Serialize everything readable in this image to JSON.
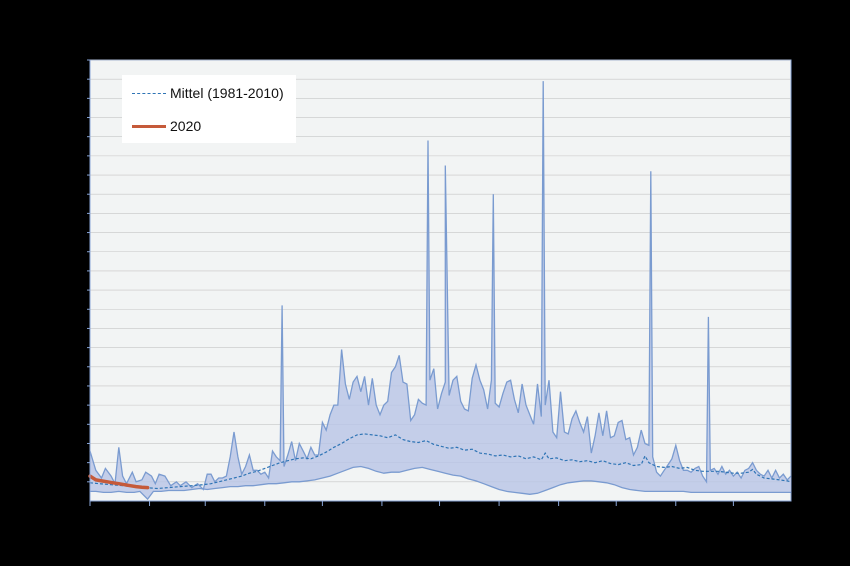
{
  "colors": {
    "background": "#000000",
    "plot_bg": "#f2f4f4",
    "band_fill": "#b8c4e6",
    "band_stroke": "#7a9bd0",
    "mean_line": "#2e74b5",
    "line_2020": "#c55a3a",
    "grid": "#c6c6c6"
  },
  "chart_data": {
    "type": "area",
    "title": "",
    "xlabel": "",
    "ylabel": "",
    "xlim": [
      1,
      366
    ],
    "ylim": [
      0,
      23
    ],
    "grid": true,
    "legend_placement": "top-left",
    "x_ticks": [
      1,
      32,
      61,
      92,
      122,
      153,
      183,
      214,
      245,
      275,
      306,
      336
    ],
    "y_ticks": [
      1,
      2,
      3,
      4,
      5,
      6,
      7,
      8,
      9,
      10,
      11,
      12,
      13,
      14,
      15,
      16,
      17,
      18,
      19,
      20,
      21,
      22,
      23
    ],
    "band_upper": [
      [
        1,
        2.6
      ],
      [
        4,
        1.6
      ],
      [
        7,
        1.2
      ],
      [
        9,
        1.7
      ],
      [
        12,
        1.3
      ],
      [
        14,
        0.9
      ],
      [
        16,
        2.8
      ],
      [
        18,
        1.3
      ],
      [
        20,
        0.9
      ],
      [
        23,
        1.5
      ],
      [
        25,
        1.0
      ],
      [
        28,
        1.1
      ],
      [
        30,
        1.5
      ],
      [
        33,
        1.3
      ],
      [
        35,
        0.9
      ],
      [
        37,
        1.4
      ],
      [
        40,
        1.3
      ],
      [
        43,
        0.8
      ],
      [
        46,
        1.0
      ],
      [
        48,
        0.8
      ],
      [
        51,
        1.0
      ],
      [
        54,
        0.7
      ],
      [
        57,
        0.9
      ],
      [
        60,
        0.6
      ],
      [
        62,
        1.4
      ],
      [
        64,
        1.4
      ],
      [
        66,
        1.0
      ],
      [
        68,
        1.2
      ],
      [
        70,
        1.2
      ],
      [
        72,
        1.3
      ],
      [
        74,
        2.3
      ],
      [
        76,
        3.6
      ],
      [
        78,
        2.3
      ],
      [
        80,
        1.4
      ],
      [
        82,
        1.8
      ],
      [
        84,
        2.4
      ],
      [
        86,
        1.6
      ],
      [
        88,
        1.6
      ],
      [
        90,
        1.4
      ],
      [
        92,
        1.5
      ],
      [
        94,
        1.2
      ],
      [
        96,
        2.6
      ],
      [
        98,
        2.3
      ],
      [
        100,
        2.1
      ],
      [
        102,
        1.8
      ],
      [
        104,
        2.4
      ],
      [
        106,
        3.1
      ],
      [
        108,
        2.1
      ],
      [
        110,
        3.0
      ],
      [
        112,
        2.6
      ],
      [
        114,
        2.2
      ],
      [
        116,
        2.8
      ],
      [
        118,
        2.4
      ],
      [
        120,
        2.4
      ],
      [
        122,
        4.1
      ],
      [
        124,
        3.7
      ],
      [
        126,
        4.5
      ],
      [
        128,
        5.0
      ],
      [
        130,
        5.0
      ],
      [
        132,
        7.9
      ],
      [
        134,
        6.1
      ],
      [
        136,
        5.3
      ],
      [
        138,
        6.2
      ],
      [
        140,
        6.5
      ],
      [
        142,
        5.7
      ],
      [
        144,
        6.5
      ],
      [
        146,
        5.0
      ],
      [
        148,
        6.4
      ],
      [
        150,
        5.0
      ],
      [
        152,
        4.5
      ],
      [
        154,
        5.0
      ],
      [
        156,
        5.2
      ],
      [
        158,
        6.7
      ],
      [
        160,
        7.0
      ],
      [
        162,
        7.6
      ],
      [
        164,
        6.2
      ],
      [
        166,
        6.1
      ],
      [
        168,
        4.2
      ],
      [
        170,
        4.5
      ],
      [
        172,
        5.3
      ],
      [
        174,
        5.1
      ],
      [
        176,
        5.0
      ],
      [
        178,
        6.3
      ],
      [
        180,
        6.9
      ],
      [
        182,
        4.8
      ],
      [
        184,
        5.6
      ],
      [
        186,
        6.2
      ],
      [
        188,
        5.5
      ],
      [
        190,
        6.3
      ],
      [
        192,
        6.5
      ],
      [
        194,
        5.2
      ],
      [
        196,
        4.8
      ],
      [
        198,
        4.7
      ],
      [
        200,
        6.4
      ],
      [
        202,
        7.1
      ],
      [
        204,
        6.3
      ],
      [
        206,
        5.8
      ],
      [
        208,
        4.8
      ],
      [
        210,
        6.3
      ],
      [
        212,
        5.1
      ],
      [
        214,
        4.9
      ],
      [
        216,
        5.6
      ],
      [
        218,
        6.2
      ],
      [
        220,
        6.3
      ],
      [
        222,
        5.3
      ],
      [
        224,
        4.6
      ],
      [
        226,
        6.1
      ],
      [
        228,
        5.0
      ],
      [
        230,
        4.5
      ],
      [
        232,
        4.0
      ],
      [
        234,
        6.1
      ],
      [
        236,
        4.4
      ],
      [
        238,
        5.0
      ],
      [
        240,
        6.3
      ],
      [
        242,
        3.6
      ],
      [
        244,
        3.3
      ],
      [
        246,
        5.7
      ],
      [
        248,
        3.6
      ],
      [
        250,
        3.5
      ],
      [
        252,
        4.3
      ],
      [
        254,
        4.7
      ],
      [
        256,
        4.1
      ],
      [
        258,
        3.6
      ],
      [
        260,
        4.4
      ],
      [
        262,
        2.5
      ],
      [
        264,
        3.4
      ],
      [
        266,
        4.6
      ],
      [
        268,
        3.4
      ],
      [
        270,
        4.7
      ],
      [
        272,
        3.3
      ],
      [
        274,
        3.4
      ],
      [
        276,
        4.1
      ],
      [
        278,
        4.2
      ],
      [
        280,
        3.2
      ],
      [
        282,
        3.3
      ],
      [
        284,
        2.4
      ],
      [
        286,
        2.8
      ],
      [
        288,
        3.7
      ],
      [
        290,
        3.0
      ],
      [
        292,
        2.9
      ],
      [
        294,
        2.3
      ],
      [
        296,
        1.5
      ],
      [
        298,
        1.3
      ],
      [
        300,
        1.6
      ],
      [
        302,
        1.9
      ],
      [
        304,
        2.2
      ],
      [
        306,
        2.9
      ],
      [
        308,
        2.1
      ],
      [
        310,
        1.6
      ],
      [
        312,
        1.6
      ],
      [
        314,
        1.5
      ],
      [
        316,
        1.7
      ],
      [
        318,
        1.8
      ],
      [
        320,
        1.3
      ],
      [
        322,
        1.0
      ],
      [
        324,
        1.6
      ],
      [
        326,
        1.7
      ],
      [
        328,
        1.4
      ],
      [
        330,
        1.8
      ],
      [
        332,
        1.4
      ],
      [
        334,
        1.6
      ],
      [
        336,
        1.3
      ],
      [
        338,
        1.5
      ],
      [
        340,
        1.2
      ],
      [
        342,
        1.6
      ],
      [
        344,
        1.7
      ],
      [
        346,
        2.0
      ],
      [
        348,
        1.6
      ],
      [
        350,
        1.4
      ],
      [
        352,
        1.3
      ],
      [
        354,
        1.6
      ],
      [
        356,
        1.2
      ],
      [
        358,
        1.6
      ],
      [
        360,
        1.2
      ],
      [
        362,
        1.4
      ],
      [
        364,
        1.1
      ],
      [
        366,
        1.3
      ]
    ],
    "band_peaks": [
      [
        101,
        10.2
      ],
      [
        177,
        18.8
      ],
      [
        186,
        17.5
      ],
      [
        211,
        16.0
      ],
      [
        237,
        21.9
      ],
      [
        293,
        17.2
      ],
      [
        323,
        9.6
      ]
    ],
    "band_lower": [
      [
        1,
        0.5
      ],
      [
        4,
        0.5
      ],
      [
        8,
        0.45
      ],
      [
        12,
        0.45
      ],
      [
        16,
        0.5
      ],
      [
        20,
        0.45
      ],
      [
        24,
        0.45
      ],
      [
        27,
        0.5
      ],
      [
        31,
        0.1
      ],
      [
        34,
        0.5
      ],
      [
        38,
        0.5
      ],
      [
        42,
        0.55
      ],
      [
        46,
        0.55
      ],
      [
        50,
        0.55
      ],
      [
        54,
        0.6
      ],
      [
        58,
        0.65
      ],
      [
        62,
        0.6
      ],
      [
        66,
        0.65
      ],
      [
        70,
        0.7
      ],
      [
        74,
        0.75
      ],
      [
        78,
        0.75
      ],
      [
        82,
        0.8
      ],
      [
        86,
        0.8
      ],
      [
        90,
        0.85
      ],
      [
        94,
        0.9
      ],
      [
        98,
        0.9
      ],
      [
        102,
        0.95
      ],
      [
        106,
        1.0
      ],
      [
        110,
        1.0
      ],
      [
        114,
        1.05
      ],
      [
        118,
        1.1
      ],
      [
        122,
        1.2
      ],
      [
        126,
        1.3
      ],
      [
        130,
        1.45
      ],
      [
        134,
        1.6
      ],
      [
        138,
        1.75
      ],
      [
        142,
        1.8
      ],
      [
        146,
        1.7
      ],
      [
        150,
        1.55
      ],
      [
        154,
        1.45
      ],
      [
        158,
        1.5
      ],
      [
        162,
        1.5
      ],
      [
        166,
        1.6
      ],
      [
        170,
        1.7
      ],
      [
        174,
        1.75
      ],
      [
        178,
        1.65
      ],
      [
        182,
        1.55
      ],
      [
        186,
        1.45
      ],
      [
        190,
        1.35
      ],
      [
        194,
        1.3
      ],
      [
        198,
        1.15
      ],
      [
        202,
        1.05
      ],
      [
        206,
        0.9
      ],
      [
        210,
        0.75
      ],
      [
        214,
        0.6
      ],
      [
        218,
        0.5
      ],
      [
        222,
        0.45
      ],
      [
        226,
        0.4
      ],
      [
        230,
        0.35
      ],
      [
        234,
        0.4
      ],
      [
        238,
        0.55
      ],
      [
        242,
        0.7
      ],
      [
        246,
        0.85
      ],
      [
        250,
        0.95
      ],
      [
        254,
        1.0
      ],
      [
        258,
        1.05
      ],
      [
        262,
        1.05
      ],
      [
        266,
        1.0
      ],
      [
        270,
        0.95
      ],
      [
        274,
        0.85
      ],
      [
        278,
        0.7
      ],
      [
        282,
        0.6
      ],
      [
        286,
        0.55
      ],
      [
        290,
        0.5
      ],
      [
        294,
        0.5
      ],
      [
        298,
        0.5
      ],
      [
        302,
        0.5
      ],
      [
        306,
        0.5
      ],
      [
        310,
        0.5
      ],
      [
        314,
        0.45
      ],
      [
        318,
        0.45
      ],
      [
        322,
        0.45
      ],
      [
        326,
        0.45
      ],
      [
        330,
        0.45
      ],
      [
        334,
        0.45
      ],
      [
        338,
        0.45
      ],
      [
        342,
        0.45
      ],
      [
        346,
        0.45
      ],
      [
        350,
        0.45
      ],
      [
        354,
        0.45
      ],
      [
        358,
        0.45
      ],
      [
        362,
        0.45
      ],
      [
        366,
        0.45
      ]
    ],
    "series": [
      {
        "name": "Mittel (1981-2010)",
        "style": "dashed",
        "points": [
          [
            1,
            0.95
          ],
          [
            6,
            0.9
          ],
          [
            12,
            0.85
          ],
          [
            18,
            0.8
          ],
          [
            24,
            0.75
          ],
          [
            30,
            0.7
          ],
          [
            36,
            0.65
          ],
          [
            42,
            0.7
          ],
          [
            48,
            0.75
          ],
          [
            54,
            0.8
          ],
          [
            60,
            0.85
          ],
          [
            64,
            0.9
          ],
          [
            68,
            1.0
          ],
          [
            72,
            1.1
          ],
          [
            76,
            1.2
          ],
          [
            80,
            1.3
          ],
          [
            84,
            1.45
          ],
          [
            88,
            1.55
          ],
          [
            92,
            1.7
          ],
          [
            96,
            1.85
          ],
          [
            100,
            2.0
          ],
          [
            104,
            2.1
          ],
          [
            108,
            2.2
          ],
          [
            112,
            2.25
          ],
          [
            116,
            2.2
          ],
          [
            120,
            2.35
          ],
          [
            124,
            2.55
          ],
          [
            128,
            2.8
          ],
          [
            132,
            3.0
          ],
          [
            136,
            3.25
          ],
          [
            140,
            3.45
          ],
          [
            144,
            3.5
          ],
          [
            148,
            3.45
          ],
          [
            152,
            3.4
          ],
          [
            156,
            3.3
          ],
          [
            160,
            3.45
          ],
          [
            164,
            3.2
          ],
          [
            168,
            3.1
          ],
          [
            172,
            3.05
          ],
          [
            176,
            3.15
          ],
          [
            180,
            2.95
          ],
          [
            184,
            2.85
          ],
          [
            188,
            2.75
          ],
          [
            192,
            2.8
          ],
          [
            196,
            2.65
          ],
          [
            200,
            2.7
          ],
          [
            204,
            2.5
          ],
          [
            208,
            2.45
          ],
          [
            212,
            2.35
          ],
          [
            216,
            2.4
          ],
          [
            220,
            2.3
          ],
          [
            224,
            2.35
          ],
          [
            228,
            2.2
          ],
          [
            232,
            2.3
          ],
          [
            236,
            2.15
          ],
          [
            238,
            2.5
          ],
          [
            240,
            2.2
          ],
          [
            244,
            2.25
          ],
          [
            248,
            2.1
          ],
          [
            252,
            2.15
          ],
          [
            256,
            2.05
          ],
          [
            260,
            2.1
          ],
          [
            264,
            2.0
          ],
          [
            268,
            2.1
          ],
          [
            272,
            1.95
          ],
          [
            276,
            1.9
          ],
          [
            280,
            2.0
          ],
          [
            284,
            1.85
          ],
          [
            288,
            1.9
          ],
          [
            290,
            2.35
          ],
          [
            292,
            2.0
          ],
          [
            296,
            1.8
          ],
          [
            300,
            1.75
          ],
          [
            304,
            1.8
          ],
          [
            308,
            1.7
          ],
          [
            312,
            1.75
          ],
          [
            316,
            1.6
          ],
          [
            320,
            1.55
          ],
          [
            324,
            1.55
          ],
          [
            328,
            1.55
          ],
          [
            332,
            1.5
          ],
          [
            336,
            1.45
          ],
          [
            340,
            1.45
          ],
          [
            344,
            1.5
          ],
          [
            346,
            1.65
          ],
          [
            348,
            1.4
          ],
          [
            352,
            1.2
          ],
          [
            356,
            1.15
          ],
          [
            360,
            1.1
          ],
          [
            364,
            1.05
          ],
          [
            366,
            1.0
          ]
        ]
      },
      {
        "name": "2020",
        "style": "solid",
        "points": [
          [
            1,
            1.3
          ],
          [
            4,
            1.1
          ],
          [
            7,
            1.05
          ],
          [
            10,
            1.0
          ],
          [
            13,
            0.95
          ],
          [
            16,
            0.9
          ],
          [
            19,
            0.85
          ],
          [
            22,
            0.8
          ],
          [
            25,
            0.75
          ],
          [
            28,
            0.72
          ],
          [
            31,
            0.7
          ]
        ]
      }
    ]
  }
}
